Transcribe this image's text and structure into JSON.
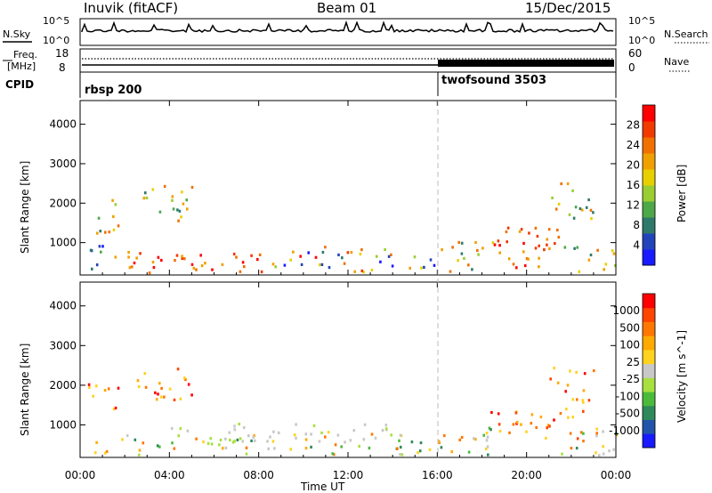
{
  "header": {
    "station": "Inuvik (fitACF)",
    "beam": "Beam 01",
    "date": "15/Dec/2015"
  },
  "panels": {
    "nsky_label": "N.Sky",
    "nsky_ticks": [
      "10^5",
      "10^0"
    ],
    "nsearch_label": "N.Search",
    "nsearch_ticks": [
      "10^5",
      "10^0"
    ],
    "freq_label_1": "Freq.",
    "freq_label_2": "[MHz]",
    "freq_ticks": [
      "18",
      "8"
    ],
    "nave_label": "Nave",
    "nave_ticks": [
      "60",
      "0"
    ],
    "cpid_label": "CPID",
    "cpid_segments": [
      "rbsp 200",
      "twofsound 3503"
    ]
  },
  "chart_data": [
    {
      "type": "heatmap",
      "name": "power",
      "ylabel": "Slant Range [km]",
      "xlabel": "",
      "x_ticks": [
        "00:00",
        "04:00",
        "08:00",
        "12:00",
        "16:00",
        "20:00",
        "00:00"
      ],
      "y_ticks": [
        "1000",
        "2000",
        "3000",
        "4000"
      ],
      "ylim": [
        180,
        4600
      ],
      "colorbar": {
        "label": "Power [dB]",
        "ticks": [
          "4",
          "8",
          "12",
          "16",
          "20",
          "24",
          "28"
        ],
        "colors": [
          "#1a1aff",
          "#2244bb",
          "#2e7a6a",
          "#4da848",
          "#9acd32",
          "#e8d000",
          "#f0a000",
          "#f07000",
          "#f03a00",
          "#ff0000"
        ]
      },
      "regions": [
        {
          "t": [
            0.0,
            1.0
          ],
          "r": [
            200,
            900
          ],
          "val": "low"
        },
        {
          "t": [
            0.5,
            1.8
          ],
          "r": [
            1200,
            2100
          ],
          "val": "mid"
        },
        {
          "t": [
            1.5,
            3.5
          ],
          "r": [
            300,
            800
          ],
          "val": "high"
        },
        {
          "t": [
            2.5,
            5.0
          ],
          "r": [
            1500,
            2400
          ],
          "val": "mid"
        },
        {
          "t": [
            3.0,
            8.5
          ],
          "r": [
            200,
            700
          ],
          "val": "high"
        },
        {
          "t": [
            8.5,
            16.5
          ],
          "r": [
            200,
            900
          ],
          "val": "mixed"
        },
        {
          "t": [
            16.5,
            18.5
          ],
          "r": [
            200,
            1000
          ],
          "val": "mid"
        },
        {
          "t": [
            18.5,
            21.5
          ],
          "r": [
            300,
            1400
          ],
          "val": "high"
        },
        {
          "t": [
            21.0,
            23.0
          ],
          "r": [
            1500,
            2500
          ],
          "val": "mid"
        },
        {
          "t": [
            21.5,
            24.0
          ],
          "r": [
            200,
            900
          ],
          "val": "mid"
        }
      ]
    },
    {
      "type": "heatmap",
      "name": "velocity",
      "ylabel": "Slant Range [km]",
      "xlabel": "Time UT",
      "x_ticks": [
        "00:00",
        "04:00",
        "08:00",
        "12:00",
        "16:00",
        "20:00",
        "00:00"
      ],
      "y_ticks": [
        "1000",
        "2000",
        "3000",
        "4000"
      ],
      "ylim": [
        180,
        4600
      ],
      "colorbar": {
        "label": "Velocity [m s^-1]",
        "ticks": [
          "1000",
          "500",
          "100",
          "25",
          "-25",
          "-100",
          "-500",
          "-1000"
        ],
        "colors": [
          "#1a1aff",
          "#2255aa",
          "#2e8a5a",
          "#4cbb3c",
          "#a8e040",
          "#c8c8c8",
          "#ffd21f",
          "#ffaa00",
          "#ff7700",
          "#ff4400",
          "#ff0000"
        ]
      },
      "regions": [
        {
          "t": [
            0.3,
            1.8
          ],
          "r": [
            1200,
            2100
          ],
          "val": "neg"
        },
        {
          "t": [
            2.5,
            5.0
          ],
          "r": [
            1500,
            2400
          ],
          "val": "neg"
        },
        {
          "t": [
            0.5,
            8.5
          ],
          "r": [
            200,
            700
          ],
          "val": "mixed"
        },
        {
          "t": [
            4.0,
            14.0
          ],
          "r": [
            500,
            1000
          ],
          "val": "gray"
        },
        {
          "t": [
            8.5,
            16.5
          ],
          "r": [
            200,
            800
          ],
          "val": "mixed"
        },
        {
          "t": [
            16.5,
            18.5
          ],
          "r": [
            200,
            1000
          ],
          "val": "mixed"
        },
        {
          "t": [
            18.0,
            22.5
          ],
          "r": [
            600,
            1400
          ],
          "val": "neg"
        },
        {
          "t": [
            21.0,
            23.0
          ],
          "r": [
            1500,
            2500
          ],
          "val": "neg"
        },
        {
          "t": [
            21.5,
            24.0
          ],
          "r": [
            200,
            900
          ],
          "val": "mixed"
        }
      ]
    }
  ]
}
